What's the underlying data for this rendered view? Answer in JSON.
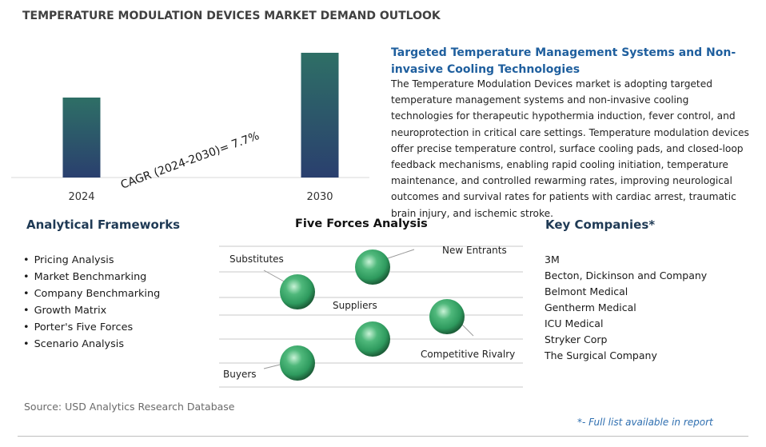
{
  "header": {
    "title": "TEMPERATURE MODULATION DEVICES MARKET DEMAND OUTLOOK"
  },
  "chart_data": {
    "type": "bar",
    "categories": [
      "2024",
      "2030"
    ],
    "values": [
      1.0,
      1.56
    ],
    "annotation": "CAGR (2024-2030)=  7.7%",
    "grid": false,
    "legend": "none",
    "bar_gradient": [
      "#2e6f66",
      "#2a3f6e"
    ]
  },
  "summary": {
    "title": "Targeted Temperature Management Systems and Non-invasive Cooling Technologies",
    "body": "The Temperature Modulation Devices market is adopting targeted temperature management systems and non-invasive cooling technologies for therapeutic hypothermia induction, fever control, and neuroprotection in critical care settings. Temperature modulation devices offer precise temperature control, surface cooling pads, and closed-loop feedback mechanisms, enabling rapid cooling initiation, temperature maintenance, and controlled rewarming rates, improving neurological outcomes and survival rates for patients with cardiac arrest, traumatic brain injury, and ischemic stroke."
  },
  "frameworks": {
    "heading": "Analytical Frameworks",
    "items": [
      "Pricing Analysis",
      "Market Benchmarking",
      "Company Benchmarking",
      "Growth Matrix",
      "Porter's Five Forces",
      "Scenario Analysis"
    ]
  },
  "five_forces": {
    "heading": "Five Forces Analysis",
    "labels": {
      "substitutes": "Substitutes",
      "new_entrants": "New Entrants",
      "suppliers": "Suppliers",
      "competitive_rivalry": "Competitive Rivalry",
      "buyers": "Buyers"
    },
    "sphere_color": "#2e9a5e"
  },
  "companies": {
    "heading": "Key Companies*",
    "items": [
      "3M",
      "Becton, Dickinson and Company",
      "Belmont Medical",
      "Gentherm Medical",
      "ICU Medical",
      "Stryker Corp",
      "The Surgical Company"
    ]
  },
  "footer": {
    "source": "Source: USD Analytics Research Database",
    "note": "*- Full list available in report"
  }
}
